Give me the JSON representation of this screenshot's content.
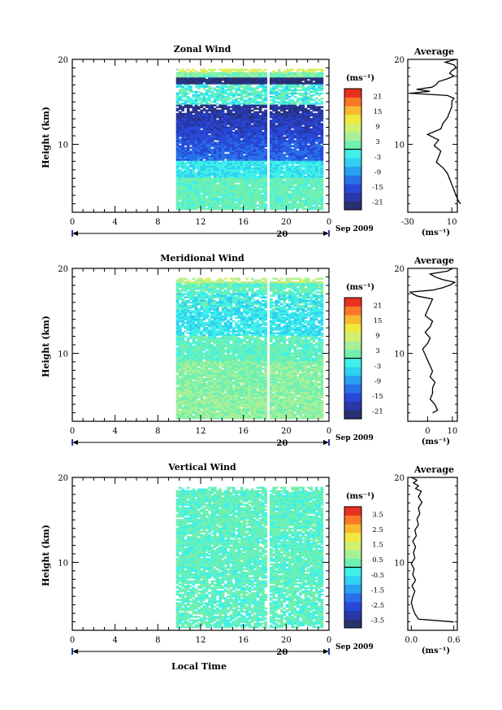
{
  "figure": {
    "date_label": "Sep 2009",
    "day_label": "20",
    "xlabel": "Local Time",
    "unit_label": "(ms⁻¹)",
    "average_title": "Average",
    "ylabel": "Height (km)"
  },
  "chart_data": [
    {
      "type": "heatmap",
      "name": "zonal",
      "title": "Zonal Wind",
      "xlabel": "Local Time",
      "ylabel": "Height (km)",
      "x_ticks": [
        "0",
        "4",
        "8",
        "12",
        "16",
        "20",
        "0"
      ],
      "xlim": [
        0,
        24
      ],
      "ylim": [
        2,
        20
      ],
      "y_ticks": [
        "10",
        "20"
      ],
      "data_x_range": [
        9.7,
        23.4
      ],
      "data_y_range": [
        2.3,
        18.8
      ],
      "colorbar": {
        "unit": "(ms⁻¹)",
        "ticks": [
          "21",
          "15",
          "9",
          "3",
          "-3",
          "-9",
          "-15",
          "-21"
        ],
        "range": [
          -24,
          24
        ]
      },
      "profile": [
        [
          5,
          18
        ],
        [
          6,
          16
        ],
        [
          8,
          14
        ],
        [
          10,
          12
        ],
        [
          12,
          10
        ],
        [
          14,
          8
        ],
        [
          16,
          6
        ],
        [
          18,
          2
        ],
        [
          20,
          -4
        ],
        [
          22,
          -2
        ],
        [
          24,
          0
        ],
        [
          26,
          -6
        ],
        [
          28,
          -2
        ],
        [
          30,
          -12
        ],
        [
          32,
          0
        ],
        [
          34,
          2
        ],
        [
          36,
          6
        ],
        [
          38,
          8
        ],
        [
          40,
          10
        ],
        [
          42,
          10
        ],
        [
          43,
          12
        ],
        [
          44,
          6
        ],
        [
          44.8,
          -28
        ],
        [
          45.5,
          -10
        ],
        [
          46.2,
          -22
        ],
        [
          47,
          -8
        ],
        [
          48,
          -4
        ],
        [
          49,
          -2
        ],
        [
          50,
          6
        ],
        [
          51,
          12
        ],
        [
          52,
          8
        ],
        [
          53,
          10
        ],
        [
          54,
          14
        ],
        [
          55,
          12
        ],
        [
          56,
          4
        ],
        [
          57,
          14
        ]
      ],
      "profile_xlim": [
        -30,
        15
      ],
      "profile_xticks": [
        "-30",
        "10"
      ],
      "profile_xtick_vals": [
        -30,
        10
      ]
    },
    {
      "type": "heatmap",
      "name": "meridional",
      "title": "Meridional Wind",
      "xlabel": "Local Time",
      "ylabel": "Height (km)",
      "x_ticks": [
        "0",
        "4",
        "8",
        "12",
        "16",
        "20",
        "0"
      ],
      "xlim": [
        0,
        24
      ],
      "ylim": [
        2,
        20
      ],
      "y_ticks": [
        "10",
        "20"
      ],
      "data_x_range": [
        9.7,
        23.4
      ],
      "data_y_range": [
        2.3,
        18.8
      ],
      "colorbar": {
        "unit": "(ms⁻¹)",
        "ticks": [
          "21",
          "15",
          "9",
          "3",
          "-3",
          "-9",
          "-15",
          "-21"
        ],
        "range": [
          -24,
          24
        ]
      },
      "profile": [
        [
          5,
          2
        ],
        [
          6,
          4
        ],
        [
          8,
          3
        ],
        [
          10,
          1
        ],
        [
          12,
          2
        ],
        [
          14,
          2
        ],
        [
          16,
          3
        ],
        [
          18,
          1
        ],
        [
          20,
          2
        ],
        [
          22,
          1
        ],
        [
          24,
          0
        ],
        [
          26,
          -1
        ],
        [
          28,
          -2
        ],
        [
          30,
          0
        ],
        [
          32,
          1
        ],
        [
          34,
          -1
        ],
        [
          36,
          1
        ],
        [
          38,
          2
        ],
        [
          40,
          -1
        ],
        [
          42,
          0
        ],
        [
          44,
          1
        ],
        [
          46,
          2
        ],
        [
          47,
          -4
        ],
        [
          47.8,
          -6
        ],
        [
          48.5,
          -7
        ],
        [
          49.2,
          2
        ],
        [
          50,
          6
        ],
        [
          51,
          9
        ],
        [
          52,
          11
        ],
        [
          53,
          6
        ],
        [
          54,
          3
        ],
        [
          55,
          1
        ],
        [
          56,
          8
        ],
        [
          57,
          10
        ]
      ],
      "profile_xlim": [
        -8,
        12
      ],
      "profile_xticks": [
        "0",
        "10"
      ],
      "profile_xtick_vals": [
        0,
        10
      ]
    },
    {
      "type": "heatmap",
      "name": "vertical",
      "title": "Vertical Wind",
      "xlabel": "Local Time",
      "ylabel": "Height (km)",
      "x_ticks": [
        "0",
        "4",
        "8",
        "12",
        "16",
        "20",
        "0"
      ],
      "xlim": [
        0,
        24
      ],
      "ylim": [
        2,
        20
      ],
      "y_ticks": [
        "10",
        "20"
      ],
      "data_x_range": [
        9.7,
        23.4
      ],
      "data_y_range": [
        2.3,
        18.8
      ],
      "colorbar": {
        "unit": "(ms⁻¹)",
        "ticks": [
          "3.5",
          "2.5",
          "1.5",
          "0.5",
          "-0.5",
          "-1.5",
          "-2.5",
          "-3.5"
        ],
        "range": [
          -4,
          4
        ]
      },
      "profile": [
        [
          5,
          0.6
        ],
        [
          6,
          0.1
        ],
        [
          8,
          0.05
        ],
        [
          10,
          0.02
        ],
        [
          12,
          0.0
        ],
        [
          14,
          0.02
        ],
        [
          16,
          0.05
        ],
        [
          18,
          0.01
        ],
        [
          20,
          0.06
        ],
        [
          22,
          0.02
        ],
        [
          24,
          0.04
        ],
        [
          26,
          0.0
        ],
        [
          28,
          0.05
        ],
        [
          30,
          0.03
        ],
        [
          32,
          0.06
        ],
        [
          34,
          0.02
        ],
        [
          36,
          0.07
        ],
        [
          38,
          0.05
        ],
        [
          40,
          0.1
        ],
        [
          42,
          0.08
        ],
        [
          44,
          0.12
        ],
        [
          46,
          0.1
        ],
        [
          48,
          0.15
        ],
        [
          50,
          0.1
        ],
        [
          52,
          0.14
        ],
        [
          53,
          0.06
        ],
        [
          54,
          0.1
        ],
        [
          55,
          0.03
        ],
        [
          56,
          0.08
        ],
        [
          57,
          0.0
        ]
      ],
      "profile_xlim": [
        -0.05,
        0.65
      ],
      "profile_xticks": [
        "0.0",
        "0.6"
      ],
      "profile_xtick_vals": [
        0.0,
        0.6
      ]
    }
  ]
}
